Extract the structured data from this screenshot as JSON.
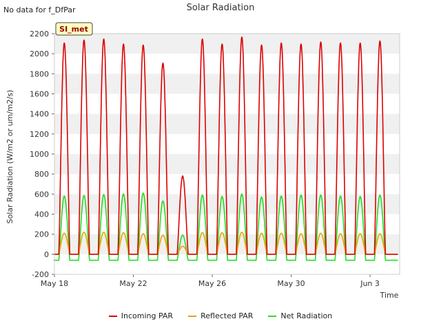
{
  "header": {
    "no_data_note": "No data for f_DfPar",
    "title": "Solar Radiation"
  },
  "colors": {
    "incoming": "#dd0000",
    "reflected": "#f0a000",
    "net": "#22dd22",
    "band": "#f0f0f0",
    "badge_bg": "#ffffc0"
  },
  "chart_data": {
    "type": "line",
    "title": "Solar Radiation",
    "xlabel": "Time",
    "ylabel": "Solar Radiation (W/m2 or um/m2/s)",
    "ylim": [
      -200,
      2200
    ],
    "xlim": [
      "2020-05-18",
      "2020-06-04T12:00"
    ],
    "yticks": [
      -200,
      0,
      200,
      400,
      600,
      800,
      1000,
      1200,
      1400,
      1600,
      1800,
      2000,
      2200
    ],
    "xticks": [
      "May 18",
      "May 22",
      "May 26",
      "May 30",
      "Jun 3"
    ],
    "badge": "SI_met",
    "grid": "alternating horizontal bands",
    "legend_position": "bottom",
    "series": [
      {
        "name": "Incoming PAR",
        "daily_peaks": [
          {
            "date": "2020-05-18",
            "value": 2110
          },
          {
            "date": "2020-05-19",
            "value": 2140
          },
          {
            "date": "2020-05-20",
            "value": 2150
          },
          {
            "date": "2020-05-21",
            "value": 2100
          },
          {
            "date": "2020-05-22",
            "value": 2090
          },
          {
            "date": "2020-05-23",
            "value": 1910
          },
          {
            "date": "2020-05-24",
            "value": 780
          },
          {
            "date": "2020-05-25",
            "value": 2150
          },
          {
            "date": "2020-05-26",
            "value": 2100
          },
          {
            "date": "2020-05-27",
            "value": 2170
          },
          {
            "date": "2020-05-28",
            "value": 2090
          },
          {
            "date": "2020-05-29",
            "value": 2110
          },
          {
            "date": "2020-05-30",
            "value": 2100
          },
          {
            "date": "2020-05-31",
            "value": 2120
          },
          {
            "date": "2020-06-01",
            "value": 2110
          },
          {
            "date": "2020-06-02",
            "value": 2110
          },
          {
            "date": "2020-06-03",
            "value": 2130
          }
        ],
        "night_value": 0
      },
      {
        "name": "Reflected PAR",
        "daily_peaks": [
          {
            "date": "2020-05-18",
            "value": 210
          },
          {
            "date": "2020-05-19",
            "value": 220
          },
          {
            "date": "2020-05-20",
            "value": 220
          },
          {
            "date": "2020-05-21",
            "value": 215
          },
          {
            "date": "2020-05-22",
            "value": 205
          },
          {
            "date": "2020-05-23",
            "value": 190
          },
          {
            "date": "2020-05-24",
            "value": 80
          },
          {
            "date": "2020-05-25",
            "value": 215
          },
          {
            "date": "2020-05-26",
            "value": 215
          },
          {
            "date": "2020-05-27",
            "value": 220
          },
          {
            "date": "2020-05-28",
            "value": 210
          },
          {
            "date": "2020-05-29",
            "value": 210
          },
          {
            "date": "2020-05-30",
            "value": 205
          },
          {
            "date": "2020-05-31",
            "value": 210
          },
          {
            "date": "2020-06-01",
            "value": 205
          },
          {
            "date": "2020-06-02",
            "value": 205
          },
          {
            "date": "2020-06-03",
            "value": 205
          }
        ],
        "night_value": 0
      },
      {
        "name": "Net Radiation",
        "daily_peaks": [
          {
            "date": "2020-05-18",
            "value": 580
          },
          {
            "date": "2020-05-19",
            "value": 585
          },
          {
            "date": "2020-05-20",
            "value": 595
          },
          {
            "date": "2020-05-21",
            "value": 600
          },
          {
            "date": "2020-05-22",
            "value": 610
          },
          {
            "date": "2020-05-23",
            "value": 530
          },
          {
            "date": "2020-05-24",
            "value": 190
          },
          {
            "date": "2020-05-25",
            "value": 590
          },
          {
            "date": "2020-05-26",
            "value": 575
          },
          {
            "date": "2020-05-27",
            "value": 600
          },
          {
            "date": "2020-05-28",
            "value": 570
          },
          {
            "date": "2020-05-29",
            "value": 580
          },
          {
            "date": "2020-05-30",
            "value": 590
          },
          {
            "date": "2020-05-31",
            "value": 590
          },
          {
            "date": "2020-06-01",
            "value": 580
          },
          {
            "date": "2020-06-02",
            "value": 575
          },
          {
            "date": "2020-06-03",
            "value": 590
          }
        ],
        "night_value": -60
      }
    ]
  }
}
